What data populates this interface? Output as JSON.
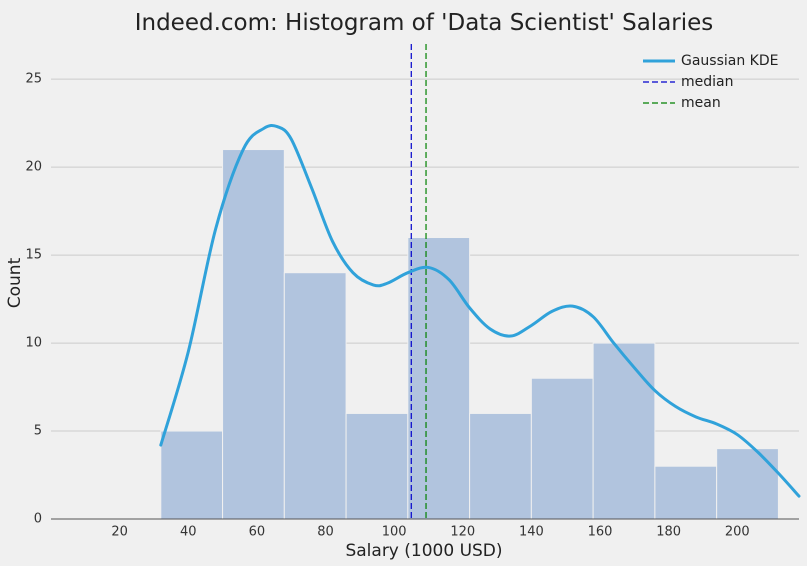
{
  "chart_data": {
    "type": "bar",
    "title": "Indeed.com: Histogram of 'Data Scientist' Salaries",
    "xlabel": "Salary (1000 USD)",
    "ylabel": "Count",
    "xlim": [
      0,
      218
    ],
    "ylim": [
      0,
      27
    ],
    "x_ticks": [
      20,
      40,
      60,
      80,
      100,
      120,
      140,
      160,
      180,
      200
    ],
    "y_ticks": [
      0,
      5,
      10,
      15,
      20,
      25
    ],
    "grid": "horizontal",
    "legend_position": "top-right",
    "bins": [
      {
        "start": 32,
        "end": 50,
        "count": 5
      },
      {
        "start": 50,
        "end": 68,
        "count": 21
      },
      {
        "start": 68,
        "end": 86,
        "count": 14
      },
      {
        "start": 86,
        "end": 104,
        "count": 6
      },
      {
        "start": 104,
        "end": 122,
        "count": 16
      },
      {
        "start": 122,
        "end": 140,
        "count": 6
      },
      {
        "start": 140,
        "end": 158,
        "count": 8
      },
      {
        "start": 158,
        "end": 176,
        "count": 10
      },
      {
        "start": 176,
        "end": 194,
        "count": 3
      },
      {
        "start": 194,
        "end": 212,
        "count": 4
      }
    ],
    "kde": {
      "name": "Gaussian KDE",
      "x": [
        32,
        40,
        48,
        56,
        62,
        66,
        70,
        76,
        82,
        88,
        94,
        98,
        104,
        110,
        116,
        122,
        128,
        134,
        140,
        146,
        152,
        158,
        164,
        170,
        176,
        182,
        188,
        194,
        200,
        206,
        212,
        218
      ],
      "y": [
        4.2,
        9.5,
        16.5,
        21.0,
        22.2,
        22.3,
        21.6,
        18.8,
        15.8,
        14.0,
        13.3,
        13.4,
        14.0,
        14.3,
        13.6,
        12.0,
        10.8,
        10.4,
        11.0,
        11.8,
        12.1,
        11.5,
        10.0,
        8.6,
        7.3,
        6.4,
        5.8,
        5.4,
        4.8,
        3.8,
        2.6,
        1.3
      ]
    },
    "median": {
      "name": "median",
      "value": 105
    },
    "mean": {
      "name": "mean",
      "value": 109.3
    },
    "colors": {
      "bar_fill": "#b1c4de",
      "bar_edge": "#f0f0f0",
      "kde": "#30a2da",
      "median": "#0000cc",
      "mean": "#008000",
      "grid": "#cbcbcb",
      "axis": "#555555",
      "background": "#f0f0f0"
    }
  }
}
